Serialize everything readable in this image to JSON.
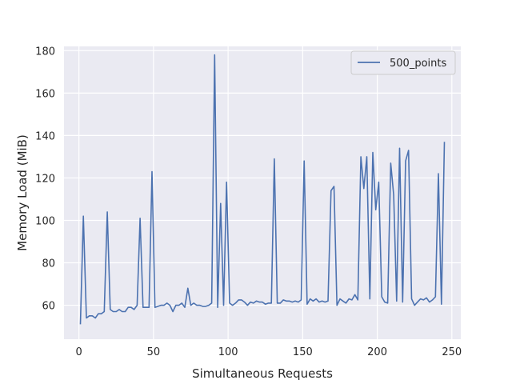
{
  "chart_data": {
    "type": "line",
    "xlabel": "Simultaneous Requests",
    "ylabel": "Memory Load (MiB)",
    "xlim": [
      -10,
      256
    ],
    "ylim": [
      44,
      182
    ],
    "xticks": [
      0,
      50,
      100,
      150,
      200,
      250
    ],
    "yticks": [
      60,
      80,
      100,
      120,
      140,
      160,
      180
    ],
    "grid": true,
    "legend_position": "top-right",
    "line_color": "#4c72b0",
    "background_color": "#eaeaf2",
    "series": [
      {
        "name": "500_points",
        "x": [
          1,
          3,
          5,
          7,
          9,
          11,
          13,
          15,
          17,
          19,
          21,
          23,
          25,
          27,
          29,
          31,
          33,
          35,
          37,
          39,
          41,
          43,
          45,
          47,
          49,
          51,
          53,
          55,
          57,
          59,
          61,
          63,
          65,
          67,
          69,
          71,
          73,
          75,
          77,
          79,
          81,
          83,
          85,
          87,
          89,
          91,
          93,
          95,
          97,
          99,
          101,
          103,
          105,
          107,
          109,
          111,
          113,
          115,
          117,
          119,
          121,
          123,
          125,
          127,
          129,
          131,
          133,
          135,
          137,
          139,
          141,
          143,
          145,
          147,
          149,
          151,
          153,
          155,
          157,
          159,
          161,
          163,
          165,
          167,
          169,
          171,
          173,
          175,
          177,
          179,
          181,
          183,
          185,
          187,
          189,
          191,
          193,
          195,
          197,
          199,
          201,
          203,
          205,
          207,
          209,
          211,
          213,
          215,
          217,
          219,
          221,
          223,
          225,
          227,
          229,
          231,
          233,
          235,
          237,
          239,
          241,
          243,
          245
        ],
        "y": [
          51,
          102,
          54,
          55,
          55,
          54,
          56,
          56,
          57,
          104,
          58,
          57,
          57,
          58,
          57,
          57,
          59,
          59,
          58,
          60,
          101,
          59,
          59,
          59,
          123,
          59,
          59.5,
          60,
          60,
          61,
          60,
          57,
          60,
          60,
          61,
          59,
          68,
          60,
          61,
          60,
          60,
          59.5,
          59.5,
          60,
          61,
          178,
          59,
          108,
          60,
          118,
          61,
          60,
          61,
          62.5,
          62.5,
          61.5,
          60,
          61.5,
          61,
          62,
          61.5,
          61.5,
          60.5,
          61,
          61,
          129,
          61,
          61,
          62.5,
          62,
          62,
          61.5,
          62,
          61.5,
          62.5,
          128,
          60.5,
          63,
          62,
          63,
          61.5,
          62,
          61.5,
          62,
          114,
          116,
          60,
          63,
          62,
          61,
          63,
          62.5,
          65,
          62.5,
          130,
          115,
          130,
          63,
          132,
          105,
          118,
          64,
          61.5,
          61,
          127,
          112,
          62,
          134,
          61.5,
          128,
          133,
          63,
          60,
          61.5,
          63,
          62.5,
          63.5,
          61.5,
          62.5,
          64,
          122,
          60.5,
          137
        ]
      }
    ]
  }
}
